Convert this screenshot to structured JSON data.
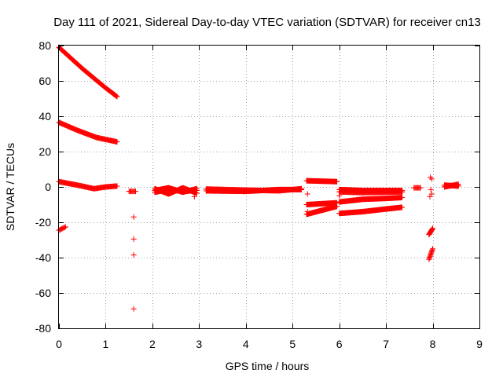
{
  "chart_data": {
    "type": "scatter",
    "title": "Day 111 of 2021, Sidereal Day-to-day VTEC variation (SDTVAR) for receiver cn13",
    "xlabel": "GPS time / hours",
    "ylabel": "SDTVAR / TECUs",
    "xlim": [
      0,
      9
    ],
    "ylim": [
      -80,
      80
    ],
    "xticks": [
      0,
      1,
      2,
      3,
      4,
      5,
      6,
      7,
      8,
      9
    ],
    "yticks": [
      -80,
      -60,
      -40,
      -20,
      0,
      20,
      40,
      60,
      80
    ],
    "grid": true,
    "marker": "+",
    "color": "#ff0000",
    "segments": [
      {
        "x": [
          0.0,
          0.5,
          1.0,
          1.25
        ],
        "y": [
          79,
          67,
          56,
          51
        ],
        "step": 0.015
      },
      {
        "x": [
          0.0,
          0.4,
          0.8,
          1.25
        ],
        "y": [
          36.5,
          32,
          28,
          25.5
        ],
        "step": 0.015
      },
      {
        "x": [
          0.0,
          0.4,
          0.75,
          1.0,
          1.25
        ],
        "y": [
          3,
          1,
          -1,
          0,
          0.5
        ],
        "step": 0.015
      },
      {
        "x": [
          0.0,
          0.15
        ],
        "y": [
          -24.5,
          -22.5
        ],
        "step": 0.02
      },
      {
        "x": [
          1.5,
          1.65
        ],
        "y": [
          -2.5,
          -2.5
        ],
        "step": 0.02
      },
      {
        "x": [
          2.05,
          2.35,
          2.65,
          2.95
        ],
        "y": [
          -3,
          -1.5,
          -2.5,
          -2
        ],
        "step": 0.012
      },
      {
        "x": [
          2.05,
          2.35,
          2.65,
          2.95
        ],
        "y": [
          -1,
          -4,
          -0.5,
          -3.5
        ],
        "step": 0.012
      },
      {
        "x": [
          2.05,
          2.35,
          2.65,
          2.95
        ],
        "y": [
          -2,
          -0.5,
          -3,
          -1
        ],
        "step": 0.012
      },
      {
        "x": [
          3.15,
          4.0,
          4.7,
          5.2
        ],
        "y": [
          -2.2,
          -2.5,
          -1.5,
          -1.5
        ],
        "step": 0.012
      },
      {
        "x": [
          3.15,
          4.0,
          4.7,
          5.2
        ],
        "y": [
          -1.2,
          -1.8,
          -2.2,
          -1
        ],
        "step": 0.015
      },
      {
        "x": [
          5.3,
          5.95
        ],
        "y": [
          3.5,
          3
        ],
        "step": 0.012
      },
      {
        "x": [
          5.3,
          5.95
        ],
        "y": [
          -10,
          -9
        ],
        "step": 0.012
      },
      {
        "x": [
          5.3,
          5.95
        ],
        "y": [
          -15.5,
          -11
        ],
        "step": 0.012
      },
      {
        "x": [
          6.0,
          6.5,
          7.0,
          7.35
        ],
        "y": [
          -1.5,
          -2,
          -2,
          -2
        ],
        "step": 0.012
      },
      {
        "x": [
          6.0,
          6.5,
          7.0,
          7.35
        ],
        "y": [
          -2.8,
          -3.2,
          -3,
          -2.8
        ],
        "step": 0.015
      },
      {
        "x": [
          6.0,
          6.5,
          7.0,
          7.35
        ],
        "y": [
          -8.5,
          -7,
          -6.5,
          -6
        ],
        "step": 0.012
      },
      {
        "x": [
          6.0,
          6.5,
          7.0,
          7.35
        ],
        "y": [
          -15,
          -14,
          -12.5,
          -11.5
        ],
        "step": 0.012
      },
      {
        "x": [
          7.6,
          7.75
        ],
        "y": [
          -0.5,
          -0.5
        ],
        "step": 0.02
      },
      {
        "x": [
          7.92,
          8.0
        ],
        "y": [
          -27,
          -23.5
        ],
        "step": 0.008
      },
      {
        "x": [
          7.92,
          8.0
        ],
        "y": [
          -41,
          -35
        ],
        "step": 0.008
      },
      {
        "x": [
          8.25,
          8.55
        ],
        "y": [
          1,
          0.5
        ],
        "step": 0.012
      },
      {
        "x": [
          8.25,
          8.55
        ],
        "y": [
          0,
          1.5
        ],
        "step": 0.015
      }
    ],
    "points": [
      {
        "x": 1.6,
        "y": -17
      },
      {
        "x": 1.6,
        "y": -29.5
      },
      {
        "x": 1.6,
        "y": -38.5
      },
      {
        "x": 1.6,
        "y": -69
      },
      {
        "x": 2.9,
        "y": -3.5
      },
      {
        "x": 2.9,
        "y": -5.5
      },
      {
        "x": 5.32,
        "y": -4
      },
      {
        "x": 5.32,
        "y": -14
      },
      {
        "x": 6.0,
        "y": -5
      },
      {
        "x": 7.95,
        "y": 5.5
      },
      {
        "x": 7.98,
        "y": 4.5
      },
      {
        "x": 7.96,
        "y": -1.5
      },
      {
        "x": 7.94,
        "y": -5.5
      },
      {
        "x": 7.98,
        "y": -4
      }
    ]
  }
}
